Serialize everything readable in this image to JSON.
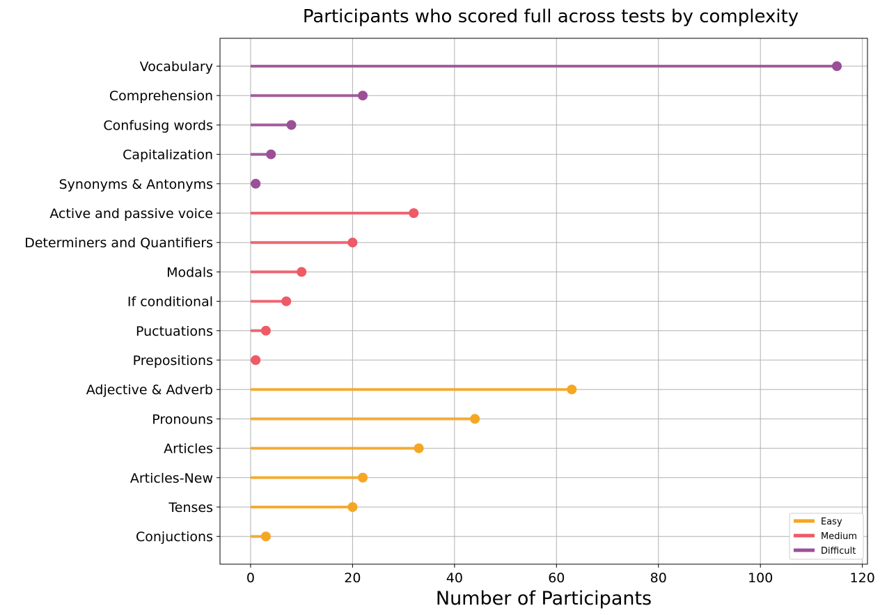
{
  "chart_data": {
    "type": "lollipop",
    "orientation": "horizontal",
    "title": "Participants who scored full across tests by complexity",
    "xlabel": "Number of Participants",
    "ylabel": "",
    "xlim": [
      -6,
      121
    ],
    "xticks": [
      0,
      20,
      40,
      60,
      80,
      100,
      120
    ],
    "grid": true,
    "legend_position": "bottom-right",
    "categories": [
      "Vocabulary",
      "Comprehension",
      "Confusing words",
      "Capitalization",
      "Synonyms & Antonyms",
      "Active and passive voice",
      "Determiners and Quantifiers",
      "Modals",
      "If conditional",
      "Puctuations",
      "Prepositions",
      "Adjective & Adverb",
      "Pronouns",
      "Articles",
      "Articles-New",
      "Tenses",
      "Conjuctions"
    ],
    "values": [
      115,
      22,
      8,
      4,
      1,
      32,
      20,
      10,
      7,
      3,
      1,
      63,
      44,
      33,
      22,
      20,
      3
    ],
    "groups": [
      "Difficult",
      "Difficult",
      "Difficult",
      "Difficult",
      "Difficult",
      "Medium",
      "Medium",
      "Medium",
      "Medium",
      "Medium",
      "Medium",
      "Easy",
      "Easy",
      "Easy",
      "Easy",
      "Easy",
      "Easy"
    ],
    "series": [
      {
        "name": "Easy",
        "color": "#F5A623"
      },
      {
        "name": "Medium",
        "color": "#EE5A66"
      },
      {
        "name": "Difficult",
        "color": "#9B4F96"
      }
    ]
  }
}
